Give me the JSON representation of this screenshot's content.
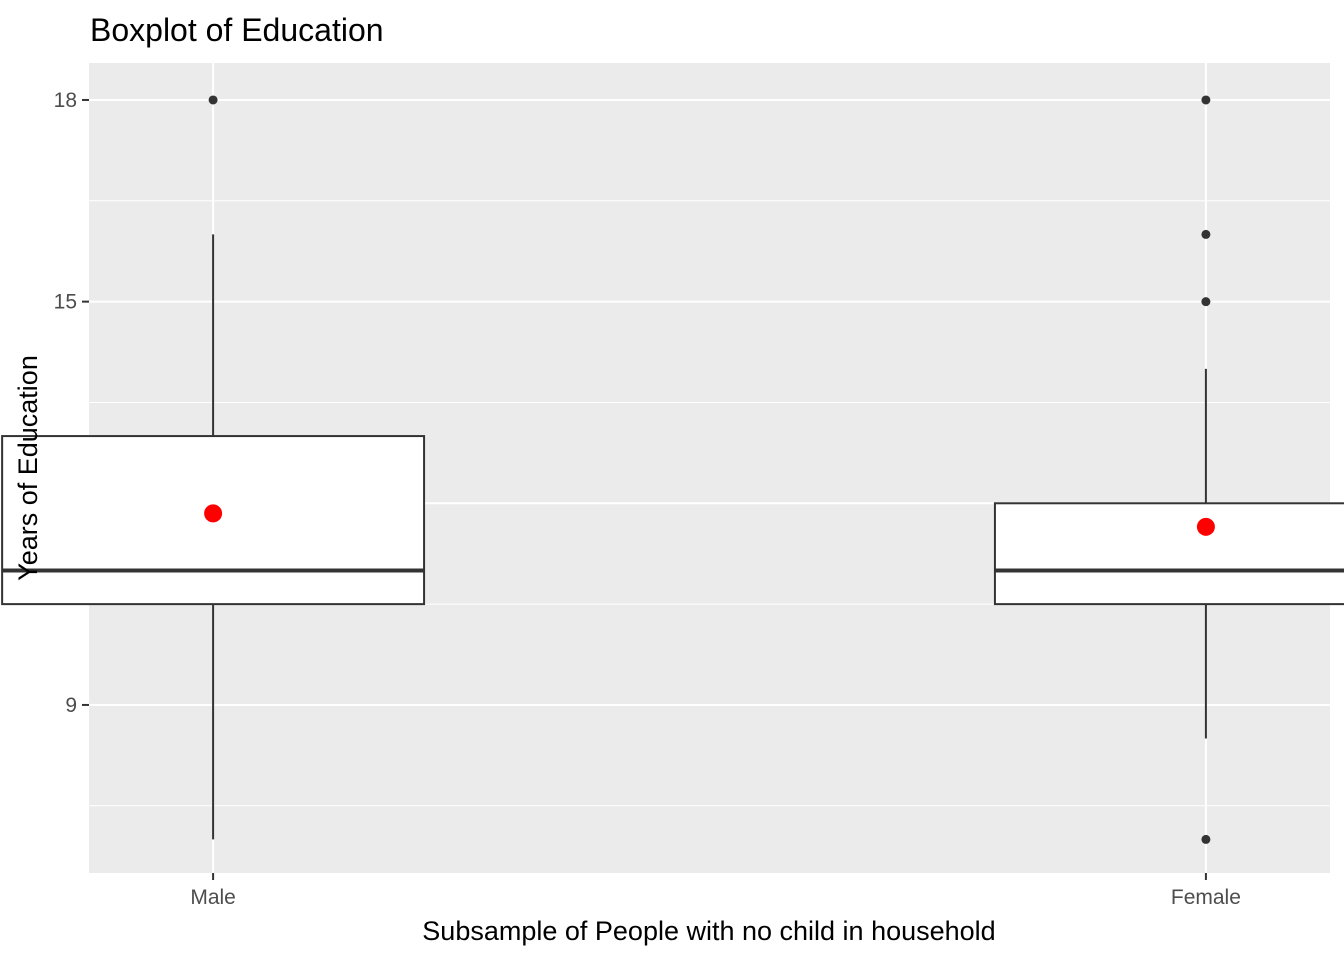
{
  "chart_data": {
    "type": "boxplot",
    "title": "Boxplot of Education",
    "xlabel": "Subsample of People with no child in household",
    "ylabel": "Years of Education",
    "categories": [
      "Male",
      "Female"
    ],
    "ylim": [
      6.5,
      18.55
    ],
    "yticks": [
      9,
      12,
      15,
      18
    ],
    "yticks_labels": [
      "9",
      "12",
      "15",
      "18"
    ],
    "grid": true,
    "boxes": [
      {
        "category": "Male",
        "whisker_low": 7,
        "q1": 10.5,
        "median": 11,
        "q3": 13,
        "whisker_high": 16,
        "mean": 11.85,
        "outliers": [
          18
        ]
      },
      {
        "category": "Female",
        "whisker_low": 8.5,
        "q1": 10.5,
        "median": 11,
        "q3": 12,
        "whisker_high": 14,
        "mean": 11.65,
        "outliers": [
          18,
          16,
          15,
          7
        ]
      }
    ],
    "colors": {
      "panel_background": "#ebebeb",
      "grid": "#ffffff",
      "box_fill": "#ffffff",
      "box_line": "#333333",
      "mean_point": "#ff0000",
      "outlier": "#333333"
    }
  }
}
